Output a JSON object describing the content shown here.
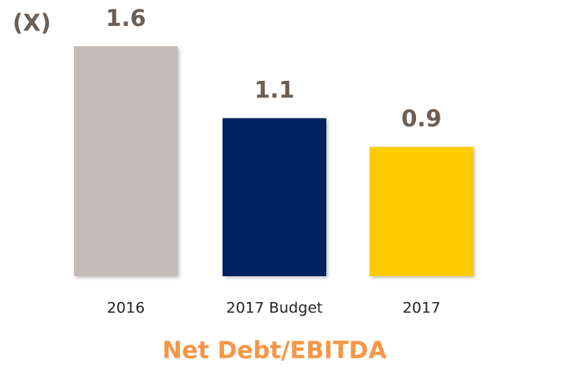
{
  "chart_data": {
    "type": "bar",
    "title": "Net Debt/EBITDA",
    "unit_label": "(X)",
    "categories": [
      "2016",
      "2017 Budget",
      "2017"
    ],
    "values": [
      1.6,
      1.1,
      0.9
    ],
    "colors": [
      "#c4bbb6",
      "#042361",
      "#fdcb05"
    ]
  }
}
